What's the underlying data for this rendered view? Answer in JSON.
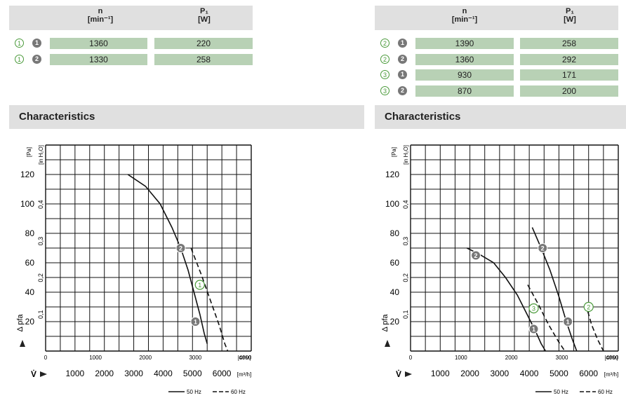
{
  "left": {
    "headers": {
      "n": "n",
      "n_unit": "[min⁻¹]",
      "p": "P₁",
      "p_unit": "[W]"
    },
    "rows": [
      {
        "curve": "1",
        "freq": "1",
        "n": "1360",
        "p": "220"
      },
      {
        "curve": "1",
        "freq": "2",
        "n": "1330",
        "p": "258"
      }
    ],
    "section_title": "Characteristics"
  },
  "right": {
    "headers": {
      "n": "n",
      "n_unit": "[min⁻¹]",
      "p": "P₁",
      "p_unit": "[W]"
    },
    "rows": [
      {
        "curve": "2",
        "freq": "1",
        "n": "1390",
        "p": "258"
      },
      {
        "curve": "2",
        "freq": "2",
        "n": "1360",
        "p": "292"
      },
      {
        "curve": "3",
        "freq": "1",
        "n": "930",
        "p": "171"
      },
      {
        "curve": "3",
        "freq": "2",
        "n": "870",
        "p": "200"
      }
    ],
    "section_title": "Characteristics"
  },
  "chart_data": [
    {
      "type": "line",
      "xlabel": "V̇",
      "x_unit": "[m³/h]",
      "x_cfm_unit": "[CFM]",
      "ylabel": "Δ pfa",
      "y_unit": "[Pa]",
      "y_inh2o_unit": "[in H₂O]",
      "xlim": [
        0,
        7000
      ],
      "ylim": [
        0,
        140
      ],
      "x_ticks": [
        "1000",
        "2000",
        "3000",
        "4000",
        "5000",
        "6000"
      ],
      "x_cfm_ticks": [
        "0",
        "1000",
        "2000",
        "3000",
        "4000"
      ],
      "y_ticks": [
        "20",
        "40",
        "60",
        "80",
        "100",
        "120"
      ],
      "y_inh2o_ticks": [
        "0,1",
        "0,2",
        "0,3",
        "0,4"
      ],
      "grid": true,
      "legend": {
        "solid": "50 Hz",
        "dashed": "60 Hz"
      },
      "series": [
        {
          "label": "1",
          "line": "solid",
          "x": [
            2800,
            3400,
            3900,
            4300,
            4600,
            4850,
            5050,
            5250,
            5400,
            5500
          ],
          "y": [
            120,
            112,
            100,
            84,
            70,
            55,
            40,
            25,
            12,
            5
          ],
          "markers": [
            {
              "label": "2",
              "style": "filled",
              "x": 4600,
              "y": 70
            },
            {
              "label": "1",
              "style": "filled",
              "x": 5100,
              "y": 20
            }
          ]
        },
        {
          "label": "1",
          "line": "dashed",
          "x": [
            4950,
            5300,
            5600,
            5900,
            6100,
            6200
          ],
          "y": [
            70,
            52,
            35,
            18,
            5,
            0
          ],
          "markers": [
            {
              "label": "1",
              "style": "outline",
              "x": 5250,
              "y": 45
            }
          ]
        }
      ]
    },
    {
      "type": "line",
      "xlabel": "V̇",
      "x_unit": "[m³/h]",
      "x_cfm_unit": "[CFM]",
      "ylabel": "Δ pfa",
      "y_unit": "[Pa]",
      "y_inh2o_unit": "[in H₂O]",
      "xlim": [
        0,
        7000
      ],
      "ylim": [
        0,
        140
      ],
      "x_ticks": [
        "1000",
        "2000",
        "3000",
        "4000",
        "5000",
        "6000"
      ],
      "x_cfm_ticks": [
        "0",
        "1000",
        "2000",
        "3000",
        "4000"
      ],
      "y_ticks": [
        "20",
        "40",
        "60",
        "80",
        "100",
        "120"
      ],
      "y_inh2o_ticks": [
        "0,1",
        "0,2",
        "0,3",
        "0,4"
      ],
      "grid": true,
      "legend": {
        "solid": "50 Hz",
        "dashed": "60 Hz"
      },
      "series": [
        {
          "label": "2",
          "line": "solid",
          "x": [
            4100,
            4400,
            4700,
            5000,
            5250,
            5450,
            5600
          ],
          "y": [
            84,
            70,
            55,
            37,
            20,
            8,
            0
          ],
          "markers": [
            {
              "label": "2",
              "style": "filled",
              "x": 4450,
              "y": 70
            },
            {
              "label": "1",
              "style": "filled",
              "x": 5300,
              "y": 20
            }
          ]
        },
        {
          "label": "2",
          "line": "dashed",
          "x": [
            5900,
            6100,
            6300,
            6500
          ],
          "y": [
            32,
            18,
            8,
            0
          ],
          "markers": [
            {
              "label": "2",
              "style": "outline",
              "x": 6000,
              "y": 30
            }
          ]
        },
        {
          "label": "3",
          "line": "solid",
          "x": [
            1900,
            2300,
            2800,
            3200,
            3600,
            3900,
            4200,
            4400,
            4550
          ],
          "y": [
            70,
            66,
            60,
            50,
            38,
            26,
            14,
            5,
            0
          ],
          "markers": [
            {
              "label": "2",
              "style": "filled",
              "x": 2200,
              "y": 65
            },
            {
              "label": "1",
              "style": "filled",
              "x": 4150,
              "y": 15
            }
          ]
        },
        {
          "label": "3",
          "line": "dashed",
          "x": [
            3950,
            4300,
            4650,
            5000,
            5200
          ],
          "y": [
            45,
            32,
            18,
            6,
            0
          ],
          "markers": [
            {
              "label": "3",
              "style": "outline",
              "x": 4150,
              "y": 29
            }
          ]
        }
      ]
    }
  ]
}
